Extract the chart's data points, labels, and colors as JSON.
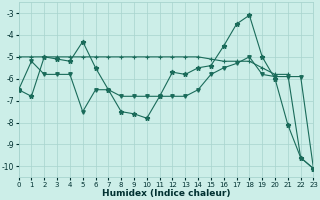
{
  "xlabel": "Humidex (Indice chaleur)",
  "background_color": "#cceee8",
  "grid_color": "#a8d4ce",
  "line_color": "#1a6b5a",
  "xlim": [
    0,
    23
  ],
  "ylim": [
    -10.5,
    -2.5
  ],
  "yticks": [
    -10,
    -9,
    -8,
    -7,
    -6,
    -5,
    -4,
    -3
  ],
  "xticks": [
    0,
    1,
    2,
    3,
    4,
    5,
    6,
    7,
    8,
    9,
    10,
    11,
    12,
    13,
    14,
    15,
    16,
    17,
    18,
    19,
    20,
    21,
    22,
    23
  ],
  "line1_x": [
    0,
    1,
    2,
    3,
    4,
    5,
    6,
    7,
    8,
    9,
    10,
    11,
    12,
    13,
    14,
    15,
    16,
    17,
    18,
    19,
    20,
    21,
    22,
    23
  ],
  "line1_y": [
    -6.5,
    -6.8,
    -5.0,
    -5.1,
    -5.2,
    -4.3,
    -5.5,
    -6.5,
    -7.5,
    -7.6,
    -7.8,
    -6.8,
    -5.7,
    -5.8,
    -5.5,
    -5.4,
    -4.5,
    -3.5,
    -3.1,
    -5.0,
    -6.0,
    -8.1,
    -9.6,
    -10.1
  ],
  "line2_x": [
    0,
    1,
    2,
    3,
    4,
    5,
    6,
    7,
    8,
    9,
    10,
    11,
    12,
    13,
    14,
    15,
    16,
    17,
    18,
    19,
    20,
    21,
    22,
    23
  ],
  "line2_y": [
    -5.0,
    -5.0,
    -5.0,
    -5.0,
    -5.0,
    -5.0,
    -5.0,
    -5.0,
    -5.0,
    -5.0,
    -5.0,
    -5.0,
    -5.0,
    -5.0,
    -5.0,
    -5.1,
    -5.2,
    -5.2,
    -5.2,
    -5.5,
    -5.8,
    -5.8,
    -9.6,
    -10.1
  ],
  "line3_x": [
    0,
    1,
    2,
    3,
    4,
    5,
    6,
    7,
    8,
    9,
    10,
    11,
    12,
    13,
    14,
    15,
    16,
    17,
    18,
    19,
    20,
    21,
    22,
    23
  ],
  "line3_y": [
    -6.5,
    -5.2,
    -5.8,
    -5.8,
    -5.8,
    -7.5,
    -6.5,
    -6.5,
    -6.8,
    -6.8,
    -6.8,
    -6.8,
    -6.8,
    -6.8,
    -6.5,
    -5.8,
    -5.5,
    -5.3,
    -5.0,
    -5.8,
    -5.9,
    -5.9,
    -5.9,
    -10.1
  ]
}
